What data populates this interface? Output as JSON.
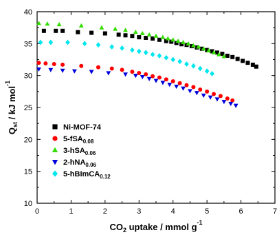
{
  "chart_data": {
    "type": "scatter",
    "xlabel": "CO2 uptake / mmol g-1",
    "ylabel": "Qst / kJ mol-1",
    "xlim": [
      0,
      7
    ],
    "ylim": [
      10,
      40
    ],
    "x_ticks": [
      "0",
      "1",
      "2",
      "3",
      "4",
      "5",
      "6",
      "7"
    ],
    "y_ticks": [
      "10",
      "15",
      "20",
      "25",
      "30",
      "35",
      "40"
    ],
    "grid": false,
    "legend_position": "left-middle",
    "series": [
      {
        "name": "Ni-MOF-74",
        "label_main": "Ni-MOF-74",
        "label_sub": "",
        "marker": "square",
        "color": "#000000",
        "x": [
          0.2,
          0.55,
          0.75,
          1.2,
          1.6,
          2.0,
          2.4,
          2.6,
          2.8,
          3.0,
          3.2,
          3.4,
          3.6,
          3.8,
          3.95,
          4.1,
          4.25,
          4.4,
          4.55,
          4.7,
          4.85,
          5.0,
          5.15,
          5.3,
          5.45,
          5.6,
          5.75,
          5.9,
          6.05,
          6.2,
          6.35,
          6.45
        ],
        "y": [
          37.0,
          37.0,
          37.0,
          36.8,
          36.7,
          36.6,
          36.4,
          36.3,
          36.2,
          36.0,
          35.9,
          35.8,
          35.6,
          35.4,
          35.3,
          35.1,
          34.9,
          34.8,
          34.6,
          34.4,
          34.2,
          34.0,
          33.8,
          33.6,
          33.4,
          33.1,
          32.9,
          32.6,
          32.3,
          32.0,
          31.7,
          31.4
        ]
      },
      {
        "name": "5-fSA0.08",
        "label_main": "5-fSA",
        "label_sub": "0.08",
        "marker": "circle",
        "color": "#ff0000",
        "x": [
          0.05,
          0.25,
          0.5,
          0.75,
          1.3,
          1.8,
          2.2,
          2.5,
          2.8,
          3.0,
          3.2,
          3.4,
          3.6,
          3.8,
          4.0,
          4.2,
          4.4,
          4.6,
          4.8,
          5.0,
          5.2,
          5.4,
          5.6,
          5.75
        ],
        "y": [
          32.0,
          31.9,
          31.8,
          31.7,
          31.5,
          31.3,
          31.1,
          30.9,
          30.6,
          30.4,
          30.2,
          29.9,
          29.7,
          29.4,
          29.1,
          28.8,
          28.5,
          28.2,
          27.8,
          27.5,
          27.1,
          26.8,
          26.4,
          26.1
        ]
      },
      {
        "name": "3-hSA0.06",
        "label_main": "3-hSA",
        "label_sub": "0.06",
        "marker": "triangle-up",
        "color": "#33dd00",
        "x": [
          0.05,
          0.3,
          0.65,
          1.3,
          1.9,
          2.3,
          2.6,
          2.9,
          3.1,
          3.3,
          3.5,
          3.7,
          3.85,
          4.0,
          4.15,
          4.3,
          4.45,
          4.6,
          4.75,
          4.9,
          5.05,
          5.2,
          5.35,
          5.5
        ],
        "y": [
          38.2,
          38.1,
          38.0,
          37.8,
          37.5,
          37.3,
          37.1,
          36.8,
          36.6,
          36.4,
          36.2,
          36.0,
          35.8,
          35.6,
          35.4,
          35.2,
          35.0,
          34.7,
          34.5,
          34.2,
          33.9,
          33.6,
          33.3,
          33.0
        ]
      },
      {
        "name": "2-hNA0.06",
        "label_main": "2-hNA",
        "label_sub": "0.06",
        "marker": "triangle-down",
        "color": "#0000dd",
        "x": [
          0.05,
          0.4,
          0.75,
          1.1,
          1.6,
          2.1,
          2.6,
          2.9,
          3.1,
          3.3,
          3.5,
          3.7,
          3.9,
          4.1,
          4.3,
          4.5,
          4.7,
          4.9,
          5.1,
          5.3,
          5.5,
          5.7,
          5.85
        ],
        "y": [
          31.0,
          30.9,
          30.8,
          30.7,
          30.6,
          30.4,
          30.2,
          30.0,
          29.8,
          29.5,
          29.2,
          28.9,
          28.6,
          28.3,
          28.0,
          27.6,
          27.3,
          26.9,
          26.6,
          26.3,
          25.9,
          25.6,
          25.3
        ]
      },
      {
        "name": "5-hBImCA0.12",
        "label_main": "5-hBImCA",
        "label_sub": "0.12",
        "marker": "diamond",
        "color": "#00e5ee",
        "x": [
          0.1,
          0.4,
          0.9,
          1.4,
          1.8,
          2.2,
          2.5,
          2.8,
          3.0,
          3.2,
          3.4,
          3.6,
          3.8,
          4.0,
          4.2,
          4.4,
          4.6,
          4.8,
          5.0,
          5.15
        ],
        "y": [
          35.2,
          35.2,
          35.2,
          35.0,
          34.8,
          34.5,
          34.3,
          34.0,
          33.8,
          33.6,
          33.3,
          33.1,
          32.8,
          32.5,
          32.2,
          31.8,
          31.5,
          31.1,
          30.7,
          30.3
        ]
      }
    ]
  }
}
